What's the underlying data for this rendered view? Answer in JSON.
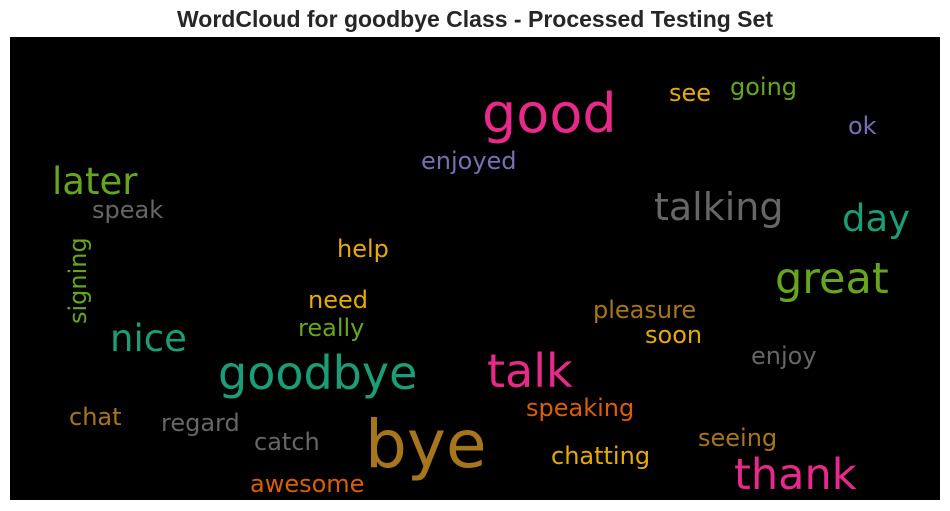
{
  "chart_data": {
    "type": "wordcloud",
    "title": "WordCloud for goodbye Class - Processed Testing Set",
    "background_color": "#000000",
    "words": [
      {
        "text": "bye",
        "size": 66,
        "color": "#a6761d",
        "orientation": "horizontal"
      },
      {
        "text": "good",
        "size": 54,
        "color": "#e7298a",
        "orientation": "horizontal"
      },
      {
        "text": "goodbye",
        "size": 46,
        "color": "#1b9e77",
        "orientation": "horizontal"
      },
      {
        "text": "talk",
        "size": 46,
        "color": "#e7298a",
        "orientation": "horizontal"
      },
      {
        "text": "thank",
        "size": 43,
        "color": "#e7298a",
        "orientation": "horizontal"
      },
      {
        "text": "great",
        "size": 43,
        "color": "#66a61e",
        "orientation": "horizontal"
      },
      {
        "text": "talking",
        "size": 38,
        "color": "#666666",
        "orientation": "horizontal"
      },
      {
        "text": "later",
        "size": 37,
        "color": "#66a61e",
        "orientation": "horizontal"
      },
      {
        "text": "nice",
        "size": 37,
        "color": "#1b9e77",
        "orientation": "horizontal"
      },
      {
        "text": "day",
        "size": 37,
        "color": "#1b9e77",
        "orientation": "horizontal"
      },
      {
        "text": "enjoyed",
        "size": 24,
        "color": "#7570b3",
        "orientation": "horizontal"
      },
      {
        "text": "pleasure",
        "size": 24,
        "color": "#a6761d",
        "orientation": "horizontal"
      },
      {
        "text": "speaking",
        "size": 24,
        "color": "#d95f02",
        "orientation": "horizontal"
      },
      {
        "text": "chatting",
        "size": 24,
        "color": "#e6ab02",
        "orientation": "horizontal"
      },
      {
        "text": "seeing",
        "size": 24,
        "color": "#a6761d",
        "orientation": "horizontal"
      },
      {
        "text": "regard",
        "size": 24,
        "color": "#666666",
        "orientation": "horizontal"
      },
      {
        "text": "catch",
        "size": 24,
        "color": "#666666",
        "orientation": "horizontal"
      },
      {
        "text": "awesome",
        "size": 24,
        "color": "#d95f02",
        "orientation": "horizontal"
      },
      {
        "text": "going",
        "size": 24,
        "color": "#66a61e",
        "orientation": "horizontal"
      },
      {
        "text": "see",
        "size": 24,
        "color": "#e6ab02",
        "orientation": "horizontal"
      },
      {
        "text": "ok",
        "size": 24,
        "color": "#7570b3",
        "orientation": "horizontal"
      },
      {
        "text": "speak",
        "size": 24,
        "color": "#666666",
        "orientation": "horizontal"
      },
      {
        "text": "signing",
        "size": 24,
        "color": "#66a61e",
        "orientation": "vertical"
      },
      {
        "text": "help",
        "size": 24,
        "color": "#e6ab02",
        "orientation": "horizontal"
      },
      {
        "text": "need",
        "size": 24,
        "color": "#e6ab02",
        "orientation": "horizontal"
      },
      {
        "text": "really",
        "size": 24,
        "color": "#66a61e",
        "orientation": "horizontal"
      },
      {
        "text": "soon",
        "size": 24,
        "color": "#e6ab02",
        "orientation": "horizontal"
      },
      {
        "text": "enjoy",
        "size": 24,
        "color": "#666666",
        "orientation": "horizontal"
      },
      {
        "text": "chat",
        "size": 24,
        "color": "#a6761d",
        "orientation": "horizontal"
      }
    ]
  }
}
